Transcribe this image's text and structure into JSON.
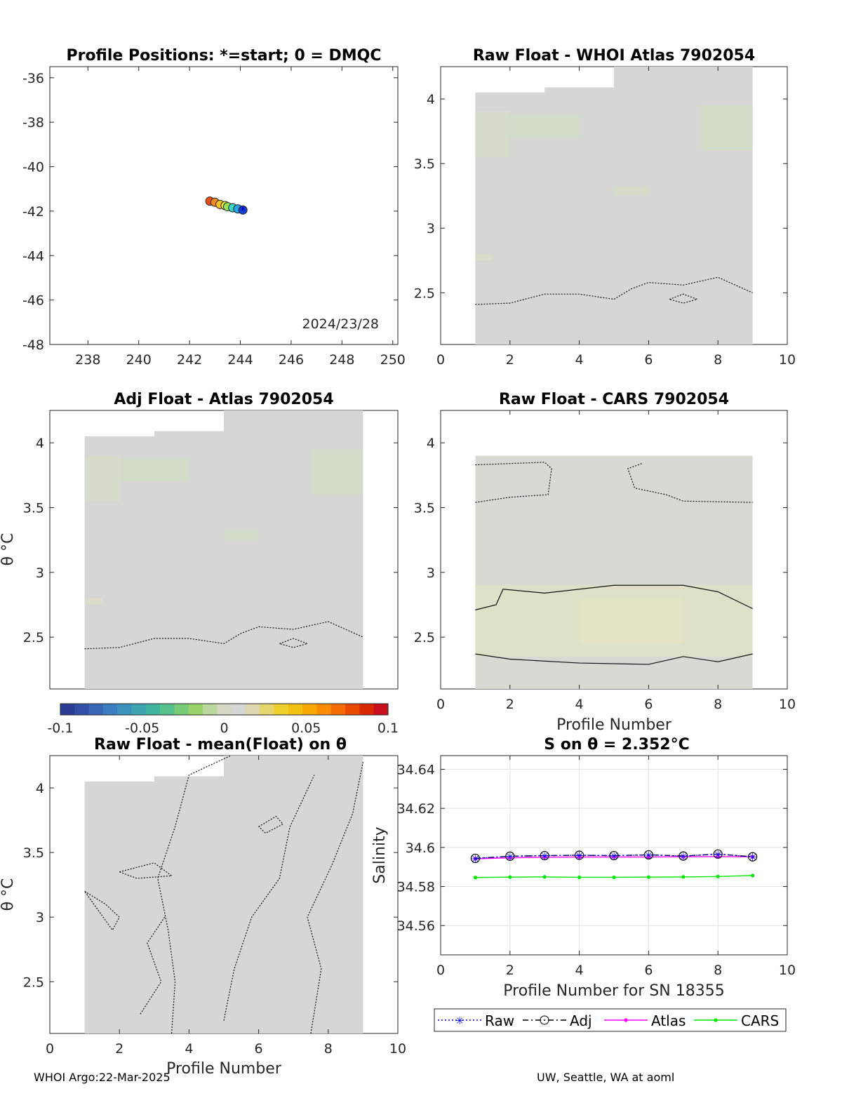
{
  "footer": {
    "left": "WHOI Argo:22-Mar-2025",
    "right": "UW, Seattle, WA at aoml"
  },
  "colorbar": {
    "ticks": [
      "-0.1",
      "-0.05",
      "0",
      "0.05",
      "0.1"
    ],
    "range": [
      -0.1,
      0.1
    ]
  },
  "chart_data": [
    {
      "id": "positions",
      "type": "scatter",
      "title": "Profile Positions: *=start; 0 = DMQC",
      "annotation": "2024/23/28",
      "xlim": [
        236.5,
        250.2
      ],
      "ylim": [
        -48,
        -35.5
      ],
      "xticks": [
        "238",
        "240",
        "242",
        "244",
        "246",
        "248",
        "250"
      ],
      "yticks": [
        "-36",
        "-38",
        "-40",
        "-42",
        "-44",
        "-46",
        "-48"
      ],
      "x": [
        244.1,
        243.9,
        243.7,
        243.5,
        243.4,
        243.2,
        243.0,
        242.8
      ],
      "y": [
        -41.95,
        -41.9,
        -41.85,
        -41.8,
        -41.75,
        -41.7,
        -41.6,
        -41.55
      ],
      "marker_colors": [
        "#1a3fd4",
        "#2aa6e8",
        "#3ad6c0",
        "#9be05a",
        "#e6e23a",
        "#f5c02a",
        "#f28a20",
        "#e8501a"
      ],
      "start_marker": "*"
    },
    {
      "id": "raw-atlas",
      "type": "heatmap",
      "title": "Raw Float - WHOI Atlas  7902054",
      "xlim": [
        0,
        10
      ],
      "ylim": [
        2.1,
        4.25
      ],
      "xticks": [
        "0",
        "2",
        "4",
        "6",
        "8",
        "10"
      ],
      "yticks": [
        "4",
        "3.5",
        "3",
        "2.5"
      ],
      "field_color": "#d6d7d4"
    },
    {
      "id": "adj-atlas",
      "type": "heatmap",
      "title": "Adj Float - Atlas  7902054",
      "ylabel": "θ °C",
      "xlim": [
        0,
        10
      ],
      "ylim": [
        2.1,
        4.25
      ],
      "xticks": [],
      "yticks": [
        "4",
        "3.5",
        "3",
        "2.5"
      ],
      "field_color": "#d6d7d4"
    },
    {
      "id": "raw-cars",
      "type": "heatmap",
      "title": "Raw Float - CARS  7902054",
      "xlabel": "Profile Number",
      "xlim": [
        0,
        10
      ],
      "ylim": [
        2.1,
        4.25
      ],
      "xticks": [
        "0",
        "2",
        "4",
        "6",
        "8",
        "10"
      ],
      "yticks": [
        "4",
        "3.5",
        "3",
        "2.5"
      ],
      "field_color": "#d9d9d3"
    },
    {
      "id": "raw-mean",
      "type": "heatmap",
      "title": "Raw Float - mean(Float) on θ",
      "xlabel": "Profile Number",
      "ylabel": "θ °C",
      "xlim": [
        0,
        10
      ],
      "ylim": [
        2.1,
        4.25
      ],
      "xticks": [
        "0",
        "2",
        "4",
        "6",
        "8",
        "10"
      ],
      "yticks": [
        "4",
        "3.5",
        "3",
        "2.5"
      ],
      "field_color": "#d6d6d6"
    },
    {
      "id": "salinity",
      "type": "line",
      "title": "S on θ = 2.352°C",
      "xlabel": "Profile Number for SN 18355",
      "ylabel": "Salinity",
      "xlim": [
        0,
        10
      ],
      "ylim": [
        34.545,
        34.647
      ],
      "xticks": [
        "0",
        "2",
        "4",
        "6",
        "8",
        "10"
      ],
      "yticks": [
        "34.64",
        "34.62",
        "34.6",
        "34.58",
        "34.56"
      ],
      "grid": true,
      "x": [
        1,
        2,
        3,
        4,
        5,
        6,
        7,
        8,
        9
      ],
      "series": [
        {
          "name": "Raw",
          "color": "#0000ff",
          "values": [
            34.5944,
            34.5955,
            34.5958,
            34.596,
            34.5958,
            34.5962,
            34.5956,
            34.5966,
            34.5952
          ]
        },
        {
          "name": "Adj",
          "color": "#000000",
          "values": [
            34.5944,
            34.5955,
            34.5958,
            34.596,
            34.5958,
            34.5962,
            34.5956,
            34.5966,
            34.5952
          ]
        },
        {
          "name": "Atlas",
          "color": "#ff00ff",
          "values": [
            34.5942,
            34.5947,
            34.595,
            34.5951,
            34.5951,
            34.5951,
            34.5952,
            34.5953,
            34.5952
          ]
        },
        {
          "name": "CARS",
          "color": "#00e600",
          "values": [
            34.5846,
            34.5848,
            34.5849,
            34.5847,
            34.5847,
            34.5848,
            34.5849,
            34.5851,
            34.5856
          ]
        }
      ],
      "legend_position": "bottom"
    }
  ]
}
